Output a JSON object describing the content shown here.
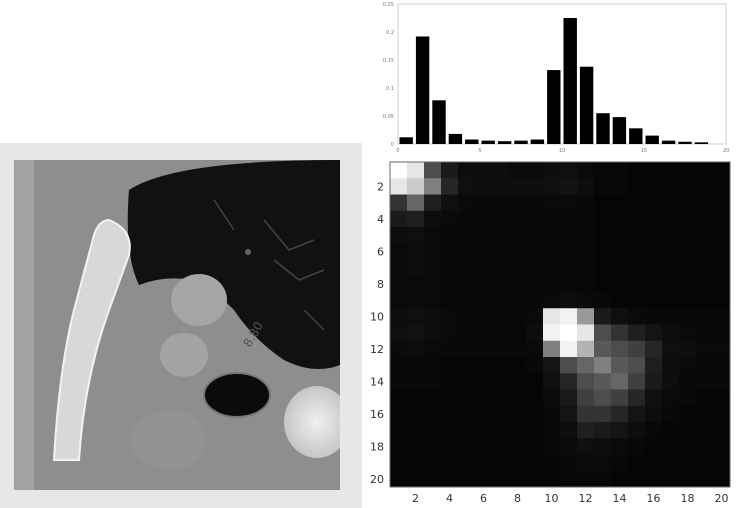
{
  "chart_data": [
    {
      "type": "bar",
      "name": "histogram",
      "categories": [
        "1",
        "2",
        "3",
        "4",
        "5",
        "6",
        "7",
        "8",
        "9",
        "10",
        "11",
        "12",
        "13",
        "14",
        "15",
        "16",
        "17",
        "18",
        "19",
        "20"
      ],
      "values": [
        0.012,
        0.192,
        0.078,
        0.018,
        0.008,
        0.006,
        0.005,
        0.006,
        0.008,
        0.132,
        0.225,
        0.138,
        0.055,
        0.048,
        0.028,
        0.015,
        0.006,
        0.004,
        0.003,
        0.0
      ],
      "ylim": [
        0,
        0.25
      ],
      "yticks": [
        "0",
        "0.05",
        "0.1",
        "0.15",
        "0.2",
        "0.25"
      ],
      "xlim": [
        0,
        20
      ],
      "xticks": [
        "0",
        "5",
        "10",
        "15",
        "20"
      ],
      "bar_color": "#000000"
    },
    {
      "type": "heatmap",
      "name": "co-occurrence-matrix",
      "rows": 20,
      "cols": 20,
      "xticks": [
        "2",
        "4",
        "6",
        "8",
        "10",
        "12",
        "14",
        "16",
        "18",
        "20"
      ],
      "yticks": [
        "2",
        "4",
        "6",
        "8",
        "10",
        "12",
        "14",
        "16",
        "18",
        "20"
      ],
      "colormap": "gray",
      "values": [
        [
          1.0,
          0.9,
          0.3,
          0.1,
          0.05,
          0.05,
          0.05,
          0.04,
          0.04,
          0.05,
          0.06,
          0.04,
          0.03,
          0.03,
          0.02,
          0.02,
          0.02,
          0.02,
          0.02,
          0.02
        ],
        [
          0.9,
          0.8,
          0.5,
          0.15,
          0.06,
          0.05,
          0.05,
          0.05,
          0.05,
          0.06,
          0.07,
          0.05,
          0.03,
          0.03,
          0.02,
          0.02,
          0.02,
          0.02,
          0.02,
          0.02
        ],
        [
          0.2,
          0.4,
          0.12,
          0.06,
          0.04,
          0.03,
          0.03,
          0.03,
          0.03,
          0.04,
          0.04,
          0.03,
          0.02,
          0.02,
          0.02,
          0.02,
          0.02,
          0.02,
          0.02,
          0.02
        ],
        [
          0.1,
          0.12,
          0.05,
          0.04,
          0.03,
          0.03,
          0.03,
          0.03,
          0.03,
          0.03,
          0.03,
          0.03,
          0.02,
          0.02,
          0.02,
          0.02,
          0.02,
          0.02,
          0.02,
          0.02
        ],
        [
          0.05,
          0.06,
          0.04,
          0.03,
          0.03,
          0.03,
          0.03,
          0.03,
          0.03,
          0.03,
          0.03,
          0.03,
          0.02,
          0.02,
          0.02,
          0.02,
          0.02,
          0.02,
          0.02,
          0.02
        ],
        [
          0.04,
          0.05,
          0.04,
          0.03,
          0.03,
          0.03,
          0.03,
          0.03,
          0.03,
          0.03,
          0.03,
          0.03,
          0.02,
          0.02,
          0.02,
          0.02,
          0.02,
          0.02,
          0.02,
          0.02
        ],
        [
          0.04,
          0.05,
          0.04,
          0.03,
          0.03,
          0.03,
          0.03,
          0.03,
          0.03,
          0.03,
          0.03,
          0.03,
          0.02,
          0.02,
          0.02,
          0.02,
          0.02,
          0.02,
          0.02,
          0.02
        ],
        [
          0.04,
          0.04,
          0.04,
          0.03,
          0.03,
          0.03,
          0.03,
          0.03,
          0.03,
          0.03,
          0.03,
          0.03,
          0.02,
          0.02,
          0.02,
          0.02,
          0.02,
          0.02,
          0.02,
          0.02
        ],
        [
          0.04,
          0.04,
          0.04,
          0.03,
          0.03,
          0.03,
          0.03,
          0.03,
          0.03,
          0.04,
          0.05,
          0.04,
          0.03,
          0.02,
          0.02,
          0.02,
          0.02,
          0.02,
          0.02,
          0.02
        ],
        [
          0.05,
          0.06,
          0.05,
          0.04,
          0.03,
          0.03,
          0.03,
          0.03,
          0.04,
          0.9,
          0.95,
          0.6,
          0.1,
          0.06,
          0.04,
          0.03,
          0.03,
          0.03,
          0.03,
          0.03
        ],
        [
          0.06,
          0.07,
          0.05,
          0.04,
          0.03,
          0.03,
          0.03,
          0.03,
          0.05,
          0.95,
          1.0,
          0.9,
          0.3,
          0.2,
          0.12,
          0.08,
          0.05,
          0.04,
          0.03,
          0.03
        ],
        [
          0.04,
          0.05,
          0.04,
          0.03,
          0.03,
          0.03,
          0.03,
          0.03,
          0.04,
          0.5,
          0.95,
          0.7,
          0.35,
          0.3,
          0.25,
          0.15,
          0.06,
          0.05,
          0.04,
          0.04
        ],
        [
          0.03,
          0.03,
          0.03,
          0.02,
          0.02,
          0.02,
          0.02,
          0.02,
          0.03,
          0.08,
          0.3,
          0.4,
          0.5,
          0.35,
          0.3,
          0.12,
          0.05,
          0.04,
          0.03,
          0.03
        ],
        [
          0.03,
          0.03,
          0.03,
          0.02,
          0.02,
          0.02,
          0.02,
          0.02,
          0.02,
          0.06,
          0.15,
          0.3,
          0.35,
          0.4,
          0.25,
          0.1,
          0.05,
          0.03,
          0.03,
          0.03
        ],
        [
          0.02,
          0.02,
          0.02,
          0.02,
          0.02,
          0.02,
          0.02,
          0.02,
          0.02,
          0.04,
          0.1,
          0.25,
          0.3,
          0.25,
          0.15,
          0.06,
          0.04,
          0.03,
          0.02,
          0.02
        ],
        [
          0.02,
          0.02,
          0.02,
          0.02,
          0.02,
          0.02,
          0.02,
          0.02,
          0.02,
          0.03,
          0.08,
          0.2,
          0.2,
          0.15,
          0.08,
          0.05,
          0.03,
          0.02,
          0.02,
          0.02
        ],
        [
          0.02,
          0.02,
          0.02,
          0.02,
          0.02,
          0.02,
          0.02,
          0.02,
          0.02,
          0.03,
          0.05,
          0.12,
          0.1,
          0.08,
          0.05,
          0.03,
          0.02,
          0.02,
          0.02,
          0.02
        ],
        [
          0.02,
          0.02,
          0.02,
          0.02,
          0.02,
          0.02,
          0.02,
          0.02,
          0.02,
          0.03,
          0.04,
          0.06,
          0.05,
          0.04,
          0.03,
          0.02,
          0.02,
          0.02,
          0.02,
          0.02
        ],
        [
          0.02,
          0.02,
          0.02,
          0.02,
          0.02,
          0.02,
          0.02,
          0.02,
          0.02,
          0.02,
          0.03,
          0.04,
          0.04,
          0.03,
          0.02,
          0.02,
          0.02,
          0.02,
          0.02,
          0.02
        ],
        [
          0.02,
          0.02,
          0.02,
          0.02,
          0.02,
          0.02,
          0.02,
          0.02,
          0.02,
          0.02,
          0.03,
          0.03,
          0.03,
          0.02,
          0.02,
          0.02,
          0.02,
          0.02,
          0.02,
          0.02
        ]
      ]
    }
  ],
  "ct_image": {
    "overlay_text": "8.80",
    "colors": {
      "lung": "#121212",
      "tissue": "#9a9a9a",
      "bone": "#dcdcdc",
      "background": "#8f8f8f"
    }
  }
}
